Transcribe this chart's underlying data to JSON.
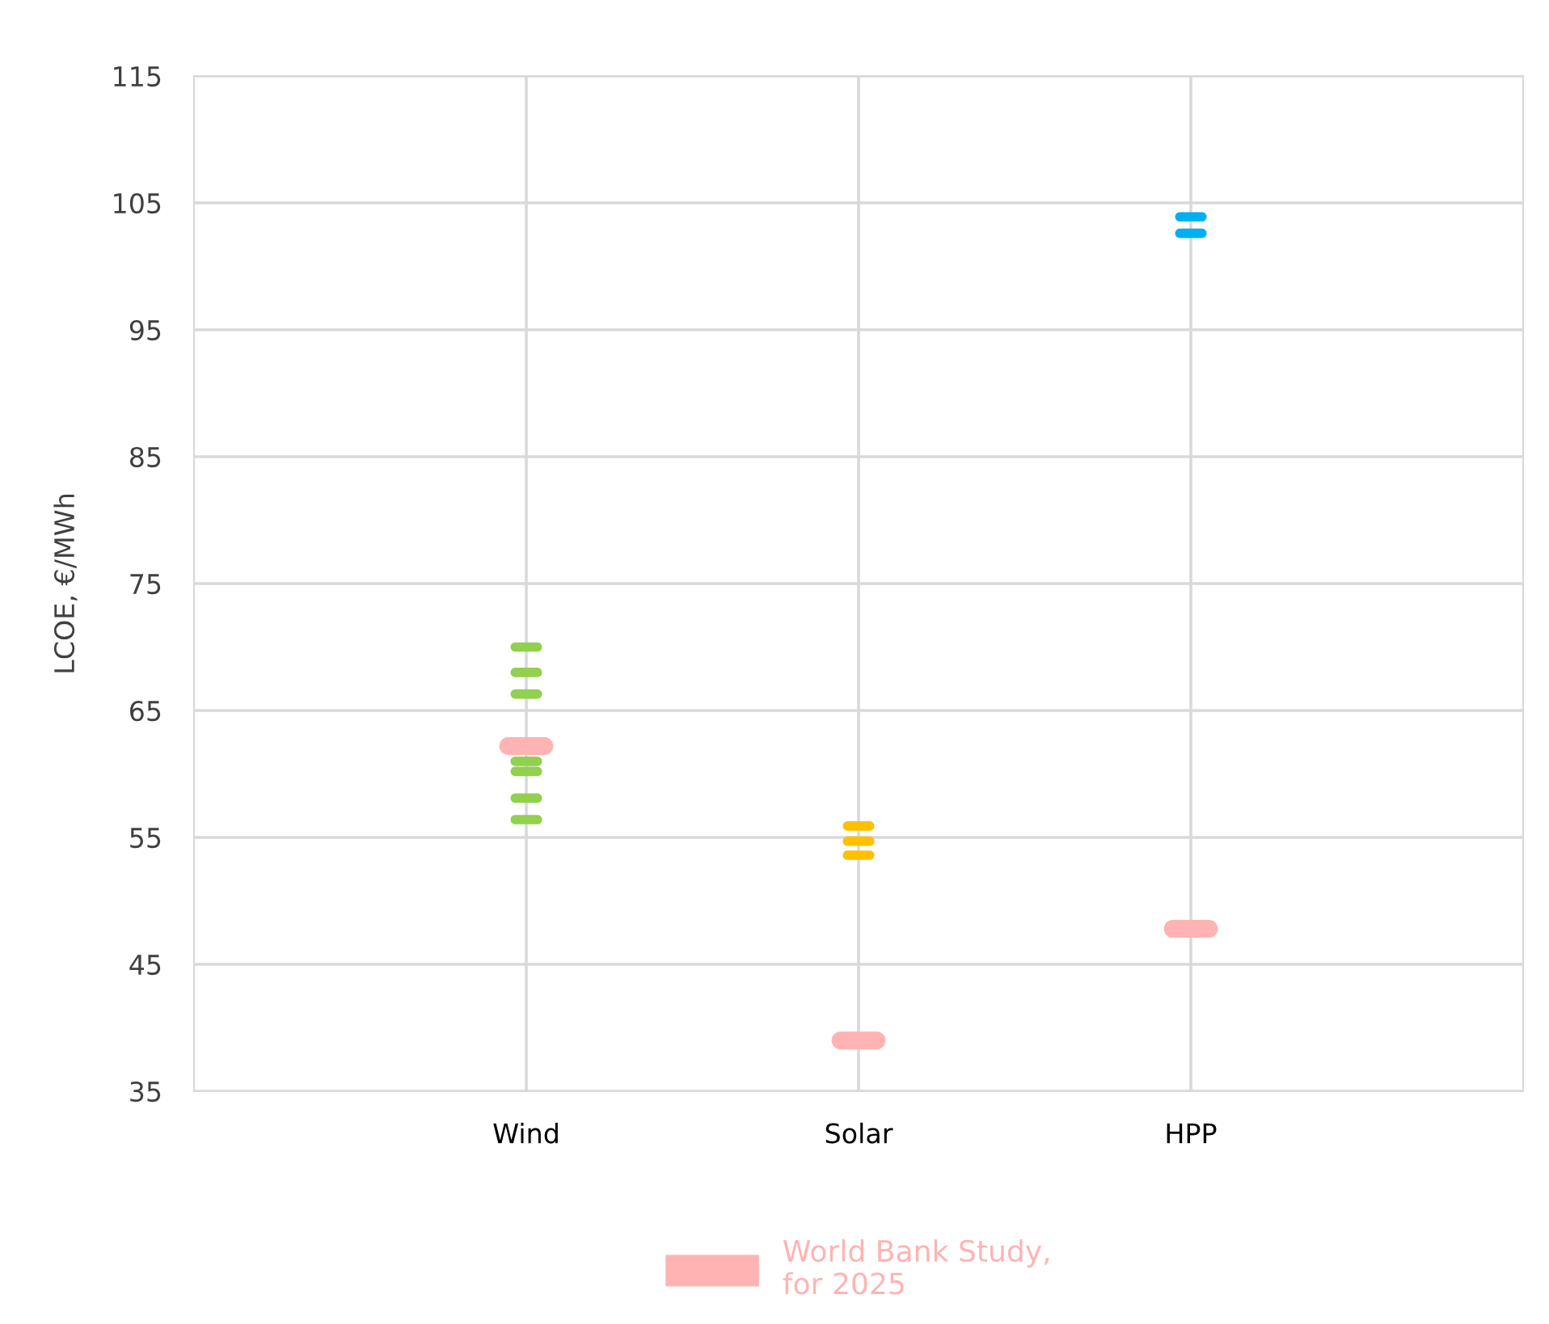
{
  "chart_data": {
    "type": "scatter",
    "ylabel": "LCOE, €/MWh",
    "categories": [
      "Wind",
      "Solar",
      "HPP"
    ],
    "ylim": [
      35,
      115
    ],
    "yticks": [
      35,
      45,
      55,
      65,
      75,
      85,
      95,
      105,
      115
    ],
    "grid": true,
    "legend": "bottom",
    "series": [
      {
        "color": "#92d050",
        "x": [
          "Wind",
          "Wind",
          "Wind",
          "Wind",
          "Wind",
          "Wind",
          "Wind"
        ],
        "values": [
          70,
          68,
          66.3,
          61,
          60.2,
          58.1,
          56.4
        ]
      },
      {
        "color": "#ffc000",
        "x": [
          "Solar",
          "Solar",
          "Solar"
        ],
        "values": [
          55.9,
          54.7,
          53.6
        ]
      },
      {
        "color": "#00b0f0",
        "x": [
          "HPP",
          "HPP"
        ],
        "values": [
          103.9,
          102.6
        ]
      },
      {
        "name": "World Bank Study,\nfor 2025",
        "color": "#ffb3b3",
        "x": [
          "Wind",
          "Solar",
          "HPP"
        ],
        "values": [
          62.2,
          39.0,
          47.8
        ]
      }
    ]
  }
}
